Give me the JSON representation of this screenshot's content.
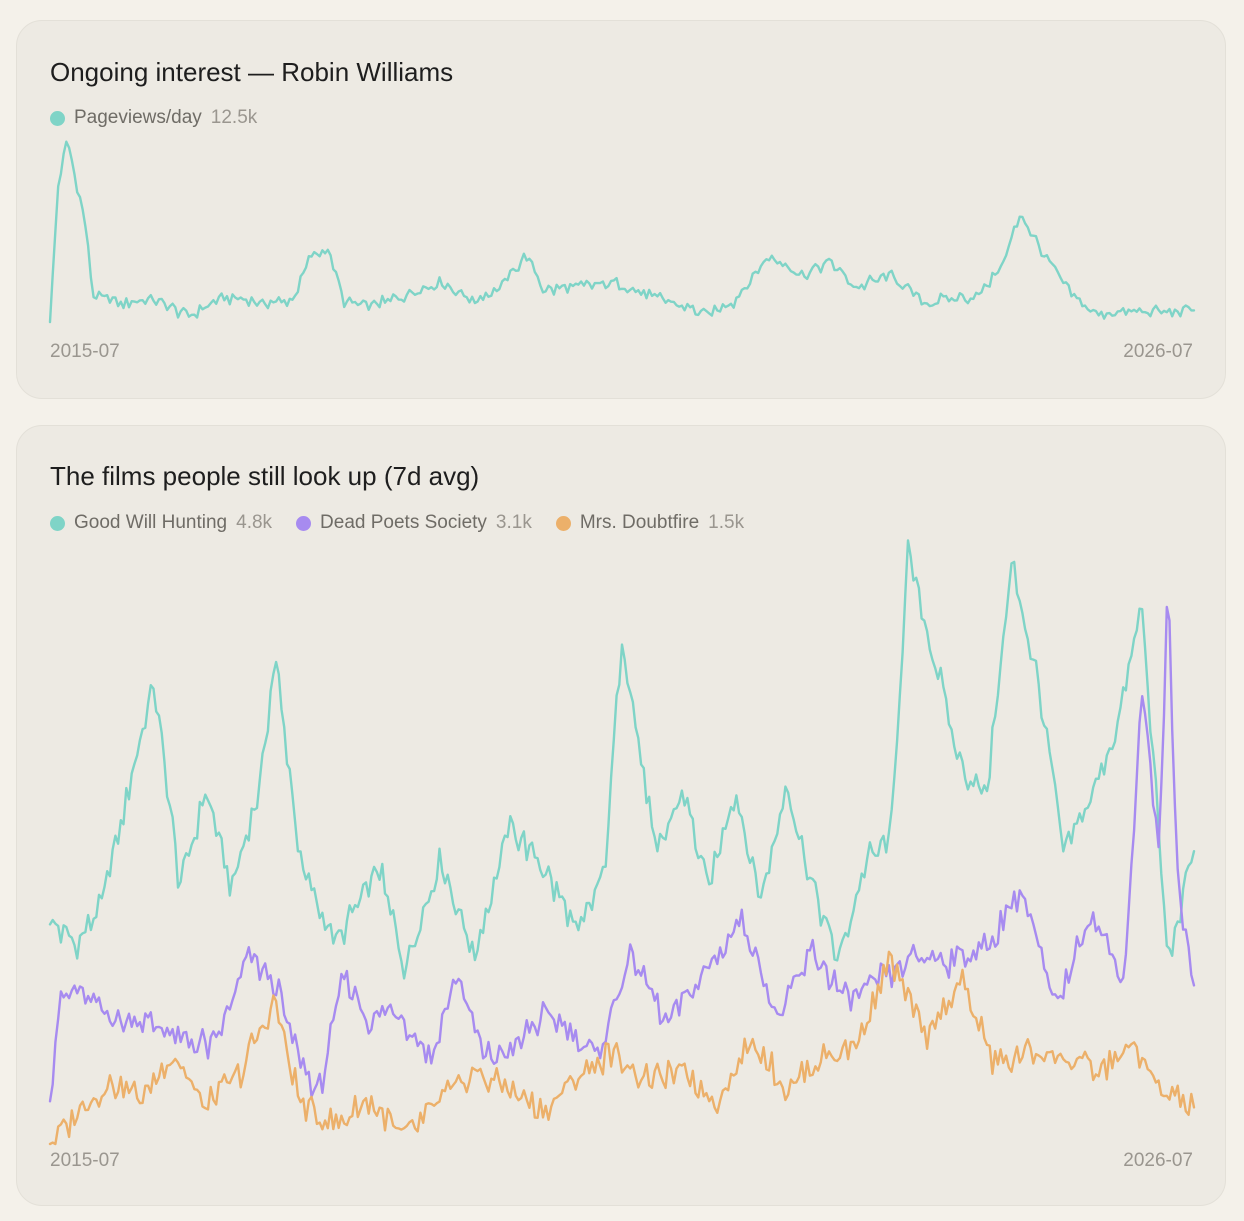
{
  "charts": [
    {
      "title": "Ongoing interest — Robin Williams",
      "legend": [
        {
          "label": "Pageviews/day",
          "value": "12.5k",
          "color": "#7fd4c7"
        }
      ],
      "x_start_label": "2015-07",
      "x_end_label": "2026-07"
    },
    {
      "title": "The films people still look up (7d avg)",
      "legend": [
        {
          "label": "Good Will Hunting",
          "value": "4.8k",
          "color": "#7fd4c7"
        },
        {
          "label": "Dead Poets Society",
          "value": "3.1k",
          "color": "#a78bf0"
        },
        {
          "label": "Mrs. Doubtfire",
          "value": "1.5k",
          "color": "#ecb06a"
        }
      ],
      "x_start_label": "2015-07",
      "x_end_label": "2026-07"
    }
  ],
  "chart_data": [
    {
      "type": "line",
      "title": "Ongoing interest — Robin Williams",
      "x_range": [
        "2015-07",
        "2026-07"
      ],
      "grid": false,
      "legend_placement": "top-left",
      "series": [
        {
          "name": "Pageviews/day",
          "color": "#7fd4c7",
          "current": "12.5k",
          "points": [
            [
              "2015-07",
              0.02
            ],
            [
              "2015-08",
              0.75
            ],
            [
              "2015-09",
              0.95
            ],
            [
              "2015-10",
              0.75
            ],
            [
              "2015-11",
              0.55
            ],
            [
              "2015-12",
              0.15
            ],
            [
              "2016-03",
              0.12
            ],
            [
              "2016-07",
              0.13
            ],
            [
              "2016-11",
              0.05
            ],
            [
              "2017-03",
              0.15
            ],
            [
              "2017-07",
              0.12
            ],
            [
              "2017-11",
              0.13
            ],
            [
              "2018-01",
              0.35
            ],
            [
              "2018-03",
              0.4
            ],
            [
              "2018-05",
              0.12
            ],
            [
              "2018-08",
              0.1
            ],
            [
              "2018-12",
              0.16
            ],
            [
              "2019-04",
              0.23
            ],
            [
              "2019-08",
              0.13
            ],
            [
              "2019-11",
              0.2
            ],
            [
              "2020-02",
              0.36
            ],
            [
              "2020-04",
              0.18
            ],
            [
              "2020-08",
              0.2
            ],
            [
              "2020-12",
              0.22
            ],
            [
              "2021-04",
              0.16
            ],
            [
              "2021-08",
              0.1
            ],
            [
              "2021-11",
              0.06
            ],
            [
              "2022-02",
              0.13
            ],
            [
              "2022-06",
              0.36
            ],
            [
              "2022-10",
              0.26
            ],
            [
              "2023-01",
              0.33
            ],
            [
              "2023-04",
              0.2
            ],
            [
              "2023-08",
              0.26
            ],
            [
              "2023-12",
              0.12
            ],
            [
              "2024-03",
              0.14
            ],
            [
              "2024-06",
              0.15
            ],
            [
              "2024-09",
              0.32
            ],
            [
              "2024-11",
              0.58
            ],
            [
              "2025-02",
              0.34
            ],
            [
              "2025-05",
              0.15
            ],
            [
              "2025-08",
              0.06
            ],
            [
              "2026-07",
              0.08
            ]
          ]
        }
      ]
    },
    {
      "type": "line",
      "title": "The films people still look up (7d avg)",
      "x_range": [
        "2015-07",
        "2026-07"
      ],
      "grid": false,
      "legend_placement": "top-left",
      "series": [
        {
          "name": "Good Will Hunting",
          "color": "#7fd4c7",
          "current": "4.8k",
          "points": [
            [
              "2015-07",
              0.36
            ],
            [
              "2015-10",
              0.33
            ],
            [
              "2016-01",
              0.39
            ],
            [
              "2016-04",
              0.58
            ],
            [
              "2016-07",
              0.75
            ],
            [
              "2016-10",
              0.42
            ],
            [
              "2017-01",
              0.58
            ],
            [
              "2017-04",
              0.42
            ],
            [
              "2017-07",
              0.57
            ],
            [
              "2017-09",
              0.8
            ],
            [
              "2017-12",
              0.45
            ],
            [
              "2018-04",
              0.33
            ],
            [
              "2018-09",
              0.45
            ],
            [
              "2018-12",
              0.29
            ],
            [
              "2019-04",
              0.47
            ],
            [
              "2019-08",
              0.31
            ],
            [
              "2019-12",
              0.52
            ],
            [
              "2020-04",
              0.45
            ],
            [
              "2020-08",
              0.34
            ],
            [
              "2020-11",
              0.45
            ],
            [
              "2021-01",
              0.83
            ],
            [
              "2021-05",
              0.47
            ],
            [
              "2021-08",
              0.58
            ],
            [
              "2021-11",
              0.42
            ],
            [
              "2022-02",
              0.58
            ],
            [
              "2022-05",
              0.4
            ],
            [
              "2022-08",
              0.59
            ],
            [
              "2022-11",
              0.42
            ],
            [
              "2023-02",
              0.3
            ],
            [
              "2023-05",
              0.46
            ],
            [
              "2023-08",
              0.5
            ],
            [
              "2023-10",
              0.97
            ],
            [
              "2024-01",
              0.8
            ],
            [
              "2024-04",
              0.62
            ],
            [
              "2024-07",
              0.57
            ],
            [
              "2024-10",
              0.95
            ],
            [
              "2025-01",
              0.76
            ],
            [
              "2025-04",
              0.47
            ],
            [
              "2025-07",
              0.57
            ],
            [
              "2025-10",
              0.67
            ],
            [
              "2026-01",
              0.88
            ],
            [
              "2026-04",
              0.3
            ],
            [
              "2026-07",
              0.48
            ]
          ]
        },
        {
          "name": "Dead Poets Society",
          "color": "#a78bf0",
          "current": "3.1k",
          "points": [
            [
              "2015-07",
              0.07
            ],
            [
              "2015-08",
              0.23
            ],
            [
              "2015-10",
              0.25
            ],
            [
              "2016-02",
              0.21
            ],
            [
              "2016-06",
              0.2
            ],
            [
              "2016-10",
              0.17
            ],
            [
              "2017-02",
              0.16
            ],
            [
              "2017-06",
              0.31
            ],
            [
              "2017-09",
              0.26
            ],
            [
              "2017-12",
              0.13
            ],
            [
              "2018-02",
              0.08
            ],
            [
              "2018-05",
              0.28
            ],
            [
              "2018-08",
              0.2
            ],
            [
              "2018-11",
              0.22
            ],
            [
              "2019-03",
              0.14
            ],
            [
              "2019-06",
              0.28
            ],
            [
              "2019-09",
              0.14
            ],
            [
              "2019-12",
              0.15
            ],
            [
              "2020-04",
              0.21
            ],
            [
              "2020-08",
              0.18
            ],
            [
              "2020-10",
              0.14
            ],
            [
              "2021-02",
              0.31
            ],
            [
              "2021-06",
              0.2
            ],
            [
              "2021-10",
              0.27
            ],
            [
              "2022-03",
              0.37
            ],
            [
              "2022-07",
              0.2
            ],
            [
              "2022-11",
              0.32
            ],
            [
              "2023-03",
              0.23
            ],
            [
              "2023-07",
              0.27
            ],
            [
              "2023-11",
              0.31
            ],
            [
              "2024-03",
              0.3
            ],
            [
              "2024-07",
              0.32
            ],
            [
              "2024-11",
              0.42
            ],
            [
              "2025-03",
              0.22
            ],
            [
              "2025-07",
              0.38
            ],
            [
              "2025-11",
              0.27
            ],
            [
              "2026-01",
              0.75
            ],
            [
              "2026-03",
              0.47
            ],
            [
              "2026-04",
              0.92
            ],
            [
              "2026-05",
              0.45
            ],
            [
              "2026-07",
              0.26
            ]
          ]
        },
        {
          "name": "Mrs. Doubtfire",
          "color": "#ecb06a",
          "current": "1.5k",
          "points": [
            [
              "2015-07",
              0.0
            ],
            [
              "2015-10",
              0.05
            ],
            [
              "2016-02",
              0.1
            ],
            [
              "2016-06",
              0.08
            ],
            [
              "2016-09",
              0.15
            ],
            [
              "2017-01",
              0.06
            ],
            [
              "2017-05",
              0.12
            ],
            [
              "2017-09",
              0.23
            ],
            [
              "2017-12",
              0.06
            ],
            [
              "2018-04",
              0.03
            ],
            [
              "2018-08",
              0.07
            ],
            [
              "2018-12",
              0.01
            ],
            [
              "2019-04",
              0.07
            ],
            [
              "2019-08",
              0.12
            ],
            [
              "2019-12",
              0.09
            ],
            [
              "2020-04",
              0.05
            ],
            [
              "2020-08",
              0.11
            ],
            [
              "2020-12",
              0.15
            ],
            [
              "2021-04",
              0.1
            ],
            [
              "2021-08",
              0.12
            ],
            [
              "2021-12",
              0.07
            ],
            [
              "2022-04",
              0.17
            ],
            [
              "2022-08",
              0.09
            ],
            [
              "2022-12",
              0.14
            ],
            [
              "2023-04",
              0.16
            ],
            [
              "2023-08",
              0.3
            ],
            [
              "2023-12",
              0.17
            ],
            [
              "2024-04",
              0.27
            ],
            [
              "2024-08",
              0.13
            ],
            [
              "2024-12",
              0.15
            ],
            [
              "2025-04",
              0.14
            ],
            [
              "2025-08",
              0.12
            ],
            [
              "2025-12",
              0.16
            ],
            [
              "2026-03",
              0.09
            ],
            [
              "2026-07",
              0.06
            ]
          ]
        }
      ]
    }
  ]
}
